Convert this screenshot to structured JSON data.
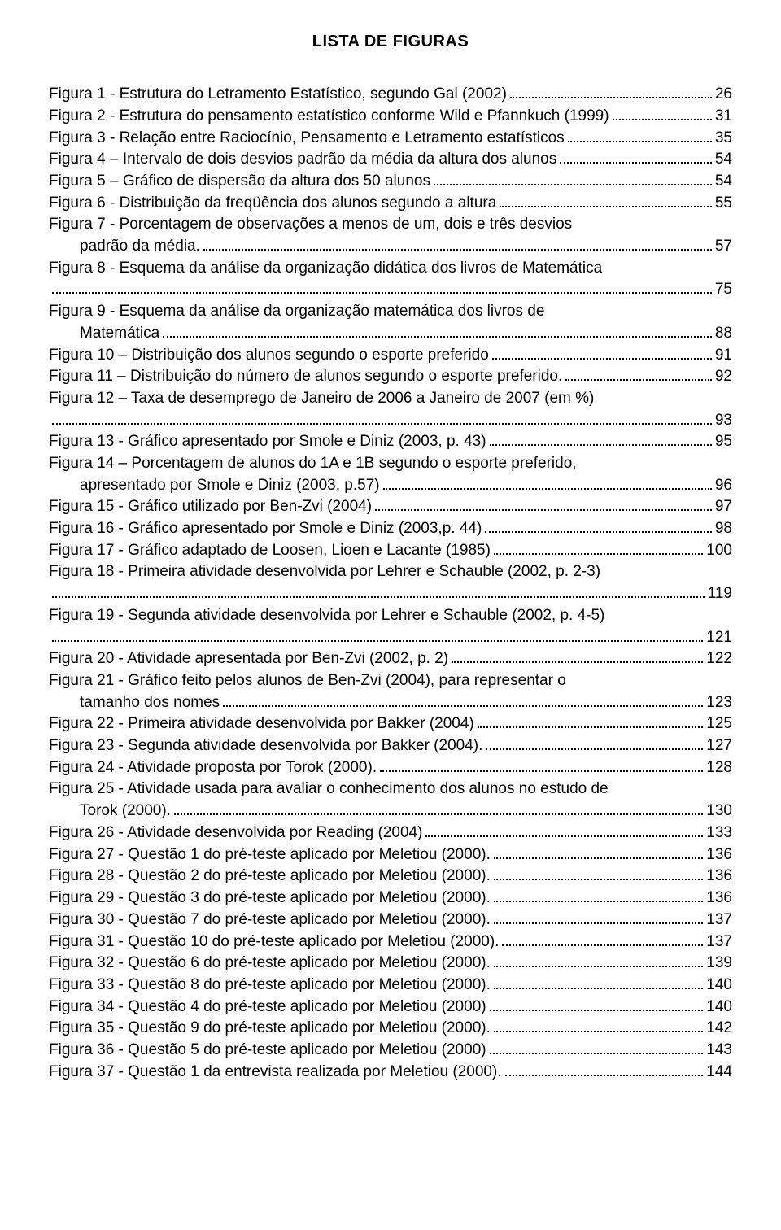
{
  "title": "LISTA DE FIGURAS",
  "entries": [
    {
      "lines": [
        "Figura 1 - Estrutura do Letramento Estatístico, segundo Gal (2002)"
      ],
      "page": "26"
    },
    {
      "lines": [
        "Figura 2 - Estrutura do pensamento estatístico conforme Wild e Pfannkuch (1999)"
      ],
      "page": "31"
    },
    {
      "lines": [
        "Figura 3 - Relação entre Raciocínio, Pensamento e Letramento estatísticos"
      ],
      "page": "35"
    },
    {
      "lines": [
        "Figura 4 – Intervalo de dois desvios padrão da média da altura dos alunos"
      ],
      "page": "54"
    },
    {
      "lines": [
        "Figura 5 – Gráfico de dispersão da altura dos 50 alunos"
      ],
      "page": "54"
    },
    {
      "lines": [
        "Figura 6 - Distribuição da freqüência dos alunos segundo a altura"
      ],
      "page": "55"
    },
    {
      "lines": [
        "Figura 7 - Porcentagem de observações a menos de um, dois e três desvios",
        "padrão da média."
      ],
      "page": "57",
      "indent_from": 1
    },
    {
      "lines": [
        "Figura 8 - Esquema da análise da organização didática dos livros de Matemática"
      ],
      "page": "75",
      "page_on_new_line": true
    },
    {
      "lines": [
        "Figura 9 - Esquema da análise da organização matemática dos livros de",
        "Matemática"
      ],
      "page": "88",
      "indent_from": 1
    },
    {
      "lines": [
        "Figura 10 – Distribuição dos alunos segundo o esporte preferido"
      ],
      "page": "91"
    },
    {
      "lines": [
        "Figura 11 – Distribuição do número de alunos segundo o esporte preferido."
      ],
      "page": "92"
    },
    {
      "lines": [
        "Figura 12 – Taxa de desemprego de Janeiro de 2006 a Janeiro de 2007  (em %)"
      ],
      "page": "93",
      "page_on_new_line": true
    },
    {
      "lines": [
        "Figura 13 - Gráfico apresentado por Smole e Diniz (2003, p. 43)"
      ],
      "page": "95"
    },
    {
      "lines": [
        "Figura 14 – Porcentagem de alunos do 1A e 1B segundo o esporte preferido,",
        "apresentado por Smole e Diniz (2003, p.57)"
      ],
      "page": "96",
      "indent_from": 1
    },
    {
      "lines": [
        "Figura 15 - Gráfico utilizado por Ben-Zvi (2004)"
      ],
      "page": "97"
    },
    {
      "lines": [
        "Figura 16 - Gráfico apresentado por Smole e Diniz (2003,p. 44)"
      ],
      "page": "98"
    },
    {
      "lines": [
        "Figura 17 - Gráfico adaptado de Loosen, Lioen e Lacante (1985)"
      ],
      "page": "100"
    },
    {
      "lines": [
        "Figura 18 - Primeira atividade desenvolvida por Lehrer e Schauble (2002, p. 2-3)"
      ],
      "page": "119",
      "page_on_new_line": true
    },
    {
      "lines": [
        "Figura 19 - Segunda atividade desenvolvida por Lehrer e Schauble (2002, p. 4-5)"
      ],
      "page": "121",
      "page_on_new_line": true
    },
    {
      "lines": [
        "Figura 20 - Atividade apresentada por Ben-Zvi (2002, p. 2)"
      ],
      "page": "122"
    },
    {
      "lines": [
        "Figura 21 - Gráfico feito pelos alunos de Ben-Zvi (2004), para representar o",
        "tamanho dos nomes"
      ],
      "page": "123",
      "indent_from": 1
    },
    {
      "lines": [
        "Figura 22 - Primeira atividade desenvolvida por Bakker (2004)"
      ],
      "page": "125"
    },
    {
      "lines": [
        "Figura 23 - Segunda atividade desenvolvida por Bakker (2004)."
      ],
      "page": "127"
    },
    {
      "lines": [
        "Figura 24 - Atividade proposta por Torok (2000)."
      ],
      "page": "128"
    },
    {
      "lines": [
        "Figura 25 - Atividade usada para avaliar o conhecimento dos alunos no estudo de",
        "Torok (2000)."
      ],
      "page": "130",
      "indent_from": 1
    },
    {
      "lines": [
        "Figura 26 - Atividade desenvolvida por Reading (2004)"
      ],
      "page": "133"
    },
    {
      "lines": [
        "Figura 27 - Questão 1 do pré-teste aplicado por Meletiou (2000)."
      ],
      "page": "136"
    },
    {
      "lines": [
        "Figura 28 - Questão 2 do pré-teste aplicado por Meletiou (2000)."
      ],
      "page": "136"
    },
    {
      "lines": [
        "Figura 29 - Questão 3 do pré-teste aplicado por Meletiou (2000)."
      ],
      "page": "136"
    },
    {
      "lines": [
        "Figura 30 - Questão 7 do pré-teste aplicado por Meletiou (2000)."
      ],
      "page": "137"
    },
    {
      "lines": [
        "Figura 31 -  Questão 10 do pré-teste aplicado por Meletiou (2000)."
      ],
      "page": "137"
    },
    {
      "lines": [
        "Figura 32 - Questão 6 do pré-teste aplicado por Meletiou (2000)."
      ],
      "page": "139"
    },
    {
      "lines": [
        "Figura 33 - Questão 8 do pré-teste aplicado por Meletiou (2000)."
      ],
      "page": "140"
    },
    {
      "lines": [
        "Figura 34 - Questão 4 do pré-teste aplicado por Meletiou (2000)"
      ],
      "page": "140"
    },
    {
      "lines": [
        "Figura 35 - Questão 9 do pré-teste aplicado por Meletiou (2000)."
      ],
      "page": "142"
    },
    {
      "lines": [
        "Figura 36 - Questão 5 do pré-teste aplicado por Meletiou (2000)"
      ],
      "page": "143"
    },
    {
      "lines": [
        "Figura 37 - Questão 1 da entrevista realizada por Meletiou (2000)."
      ],
      "page": "144"
    }
  ]
}
